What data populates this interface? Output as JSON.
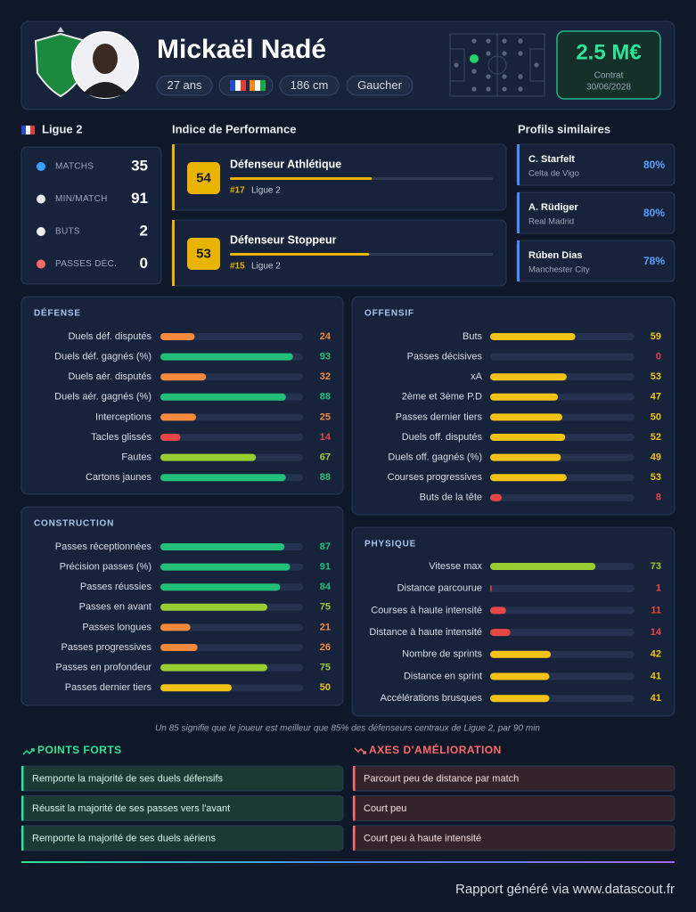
{
  "header": {
    "name": "Mickaël Nadé",
    "tags": [
      "27 ans",
      "186 cm",
      "Gaucher"
    ],
    "market_value": "2.5 M€",
    "contract_label": "Contrat",
    "contract_date": "30/06/2028"
  },
  "league": "Ligue 2",
  "stats": [
    {
      "label": "MATCHS",
      "value": 35
    },
    {
      "label": "MIN/MATCH",
      "value": 91
    },
    {
      "label": "BUTS",
      "value": 2
    },
    {
      "label": "PASSES DÉC.",
      "value": 0
    }
  ],
  "performance": {
    "title": "Indice de Performance",
    "items": [
      {
        "score": 54,
        "label": "Défenseur Athlétique",
        "rank": "#17",
        "league": "Ligue 2"
      },
      {
        "score": 53,
        "label": "Défenseur Stoppeur",
        "rank": "#15",
        "league": "Ligue 2"
      }
    ]
  },
  "similar": {
    "title": "Profils similaires",
    "items": [
      {
        "name": "C. Starfelt",
        "club": "Celta de Vigo",
        "similarity": "80%"
      },
      {
        "name": "A. Rüdiger",
        "club": "Real Madrid",
        "similarity": "80%"
      },
      {
        "name": "Rúben Dias",
        "club": "Manchester City",
        "similarity": "78%"
      }
    ]
  },
  "sections": [
    {
      "title": "DÉFENSE",
      "rows": [
        {
          "label": "Duels déf. disputés",
          "value": 24
        },
        {
          "label": "Duels déf. gagnés (%)",
          "value": 93
        },
        {
          "label": "Duels aér. disputés",
          "value": 32
        },
        {
          "label": "Duels aér. gagnés (%)",
          "value": 88
        },
        {
          "label": "Interceptions",
          "value": 25
        },
        {
          "label": "Tacles glissés",
          "value": 14
        },
        {
          "label": "Fautes",
          "value": 67
        },
        {
          "label": "Cartons jaunes",
          "value": 88
        }
      ]
    },
    {
      "title": "OFFENSIF",
      "rows": [
        {
          "label": "Buts",
          "value": 59
        },
        {
          "label": "Passes décisives",
          "value": 0
        },
        {
          "label": "xA",
          "value": 53
        },
        {
          "label": "2ème et 3ème P.D",
          "value": 47
        },
        {
          "label": "Passes dernier tiers",
          "value": 50
        },
        {
          "label": "Duels off. disputés",
          "value": 52
        },
        {
          "label": "Duels off. gagnés (%)",
          "value": 49
        },
        {
          "label": "Courses progressives",
          "value": 53
        },
        {
          "label": "Buts de la tête",
          "value": 8
        }
      ]
    },
    {
      "title": "CONSTRUCTION",
      "rows": [
        {
          "label": "Passes réceptionnées",
          "value": 87
        },
        {
          "label": "Précision passes (%)",
          "value": 91
        },
        {
          "label": "Passes réussies",
          "value": 84
        },
        {
          "label": "Passes en avant",
          "value": 75
        },
        {
          "label": "Passes longues",
          "value": 21
        },
        {
          "label": "Passes progressives",
          "value": 26
        },
        {
          "label": "Passes en profondeur",
          "value": 75
        },
        {
          "label": "Passes dernier tiers",
          "value": 50
        }
      ]
    },
    {
      "title": "PHYSIQUE",
      "rows": [
        {
          "label": "Vitesse max",
          "value": 73
        },
        {
          "label": "Distance parcourue",
          "value": 1
        },
        {
          "label": "Courses à haute intensité",
          "value": 11
        },
        {
          "label": "Distance à haute intensité",
          "value": 14
        },
        {
          "label": "Nombre de sprints",
          "value": 42
        },
        {
          "label": "Distance en sprint",
          "value": 41
        },
        {
          "label": "Accélérations brusques",
          "value": 41
        }
      ]
    }
  ],
  "note": "Un 85 signifie que le joueur est meilleur que 85% des défenseurs centraux de Ligue 2, par 90 min",
  "strengths": {
    "title": "POINTS FORTS",
    "items": [
      "Remporte la majorité de ses duels défensifs",
      "Réussit la majorité de ses passes vers l'avant",
      "Remporte la majorité de ses duels aériens"
    ]
  },
  "improvements": {
    "title": "AXES D'AMÉLIORATION",
    "items": [
      "Parcourt peu de distance par match",
      "Court peu",
      "Court peu à haute intensité"
    ]
  },
  "footer": "Rapport généré via www.datascout.fr"
}
